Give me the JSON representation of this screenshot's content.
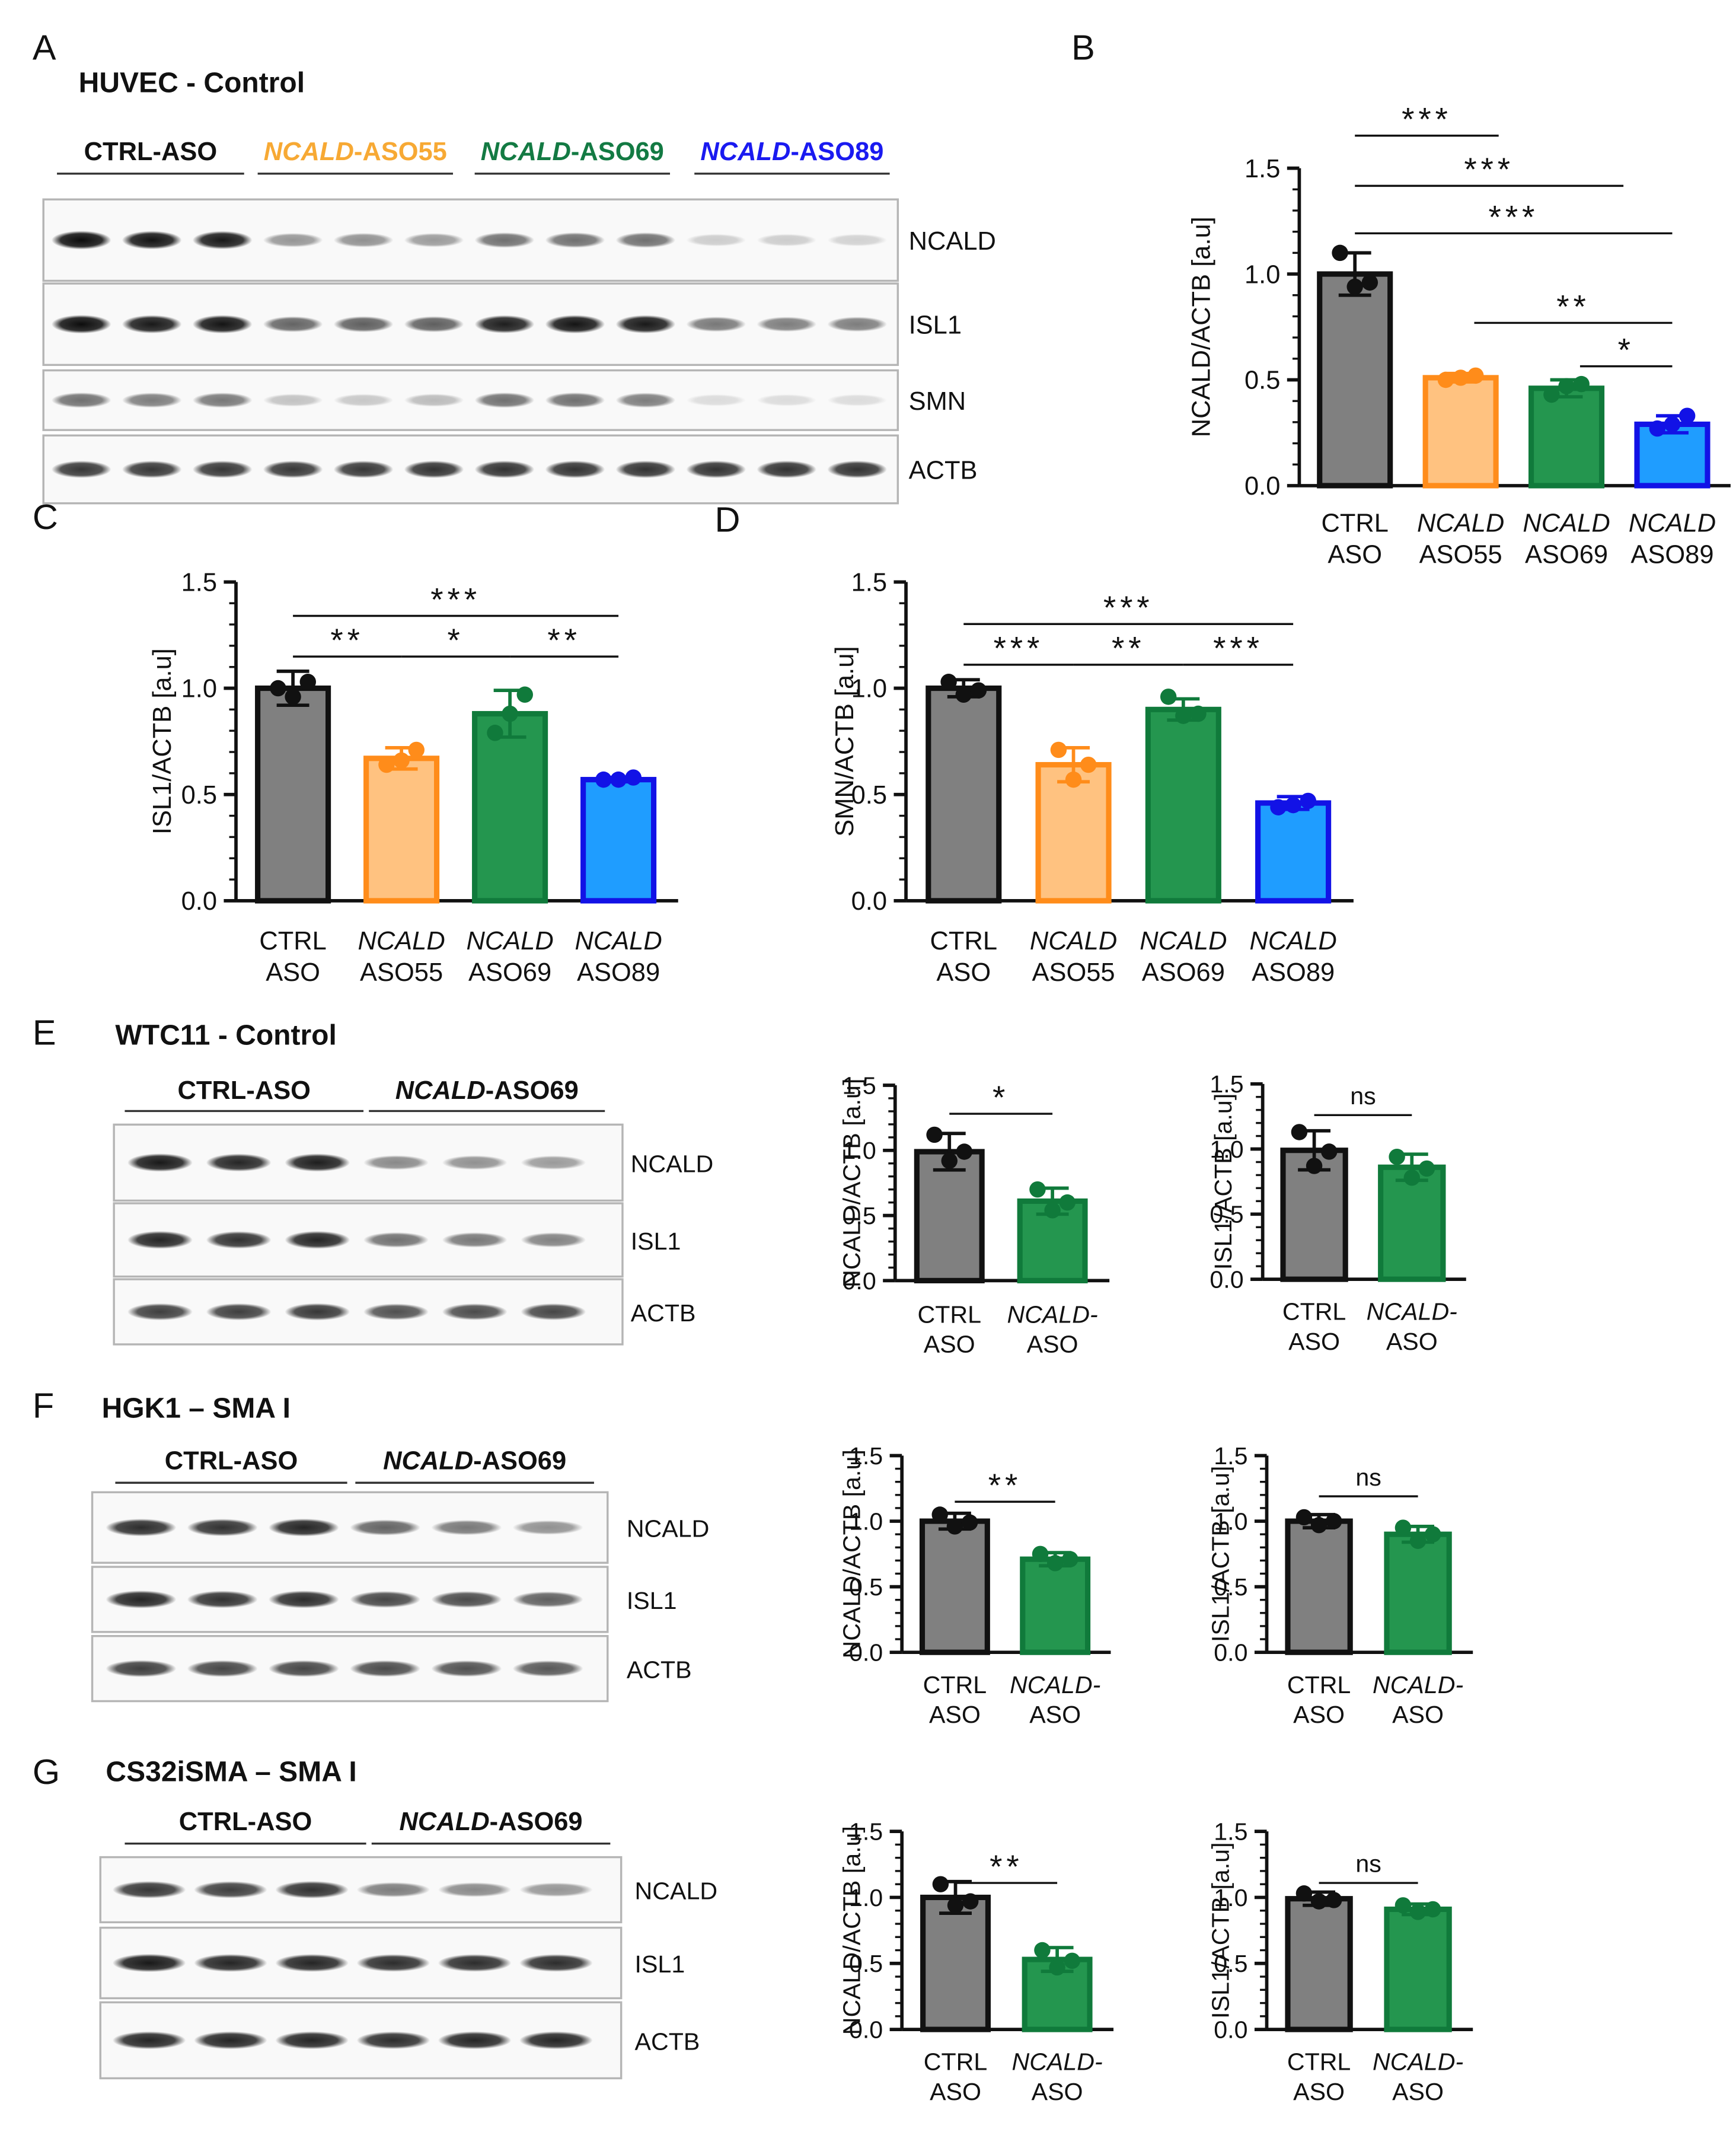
{
  "panels": [
    {
      "letter": "A",
      "blot": {
        "title": "HUVEC - Control",
        "groups": [
          {
            "parts": [
              {
                "text": "CTRL-ASO",
                "italic": false
              }
            ],
            "color": "#111111"
          },
          {
            "parts": [
              {
                "text": "NCALD",
                "italic": true
              },
              {
                "text": "-ASO55",
                "italic": false
              }
            ],
            "color": "#f7a934"
          },
          {
            "parts": [
              {
                "text": "NCALD",
                "italic": true
              },
              {
                "text": "-ASO69",
                "italic": false
              }
            ],
            "color": "#137a43"
          },
          {
            "parts": [
              {
                "text": "NCALD",
                "italic": true
              },
              {
                "text": "-ASO89",
                "italic": false
              }
            ],
            "color": "#1a1af0"
          }
        ],
        "rows": [
          {
            "label": "NCALD",
            "intensity": [
              0.95,
              0.92,
              0.9,
              0.4,
              0.42,
              0.38,
              0.55,
              0.55,
              0.55,
              0.18,
              0.18,
              0.16
            ]
          },
          {
            "label": "ISL1",
            "intensity": [
              0.95,
              0.9,
              0.92,
              0.6,
              0.62,
              0.62,
              0.88,
              0.92,
              0.9,
              0.52,
              0.5,
              0.5
            ]
          },
          {
            "label": "SMN",
            "intensity": [
              0.55,
              0.5,
              0.52,
              0.22,
              0.2,
              0.25,
              0.55,
              0.55,
              0.5,
              0.12,
              0.12,
              0.12
            ]
          },
          {
            "label": "ACTB",
            "intensity": [
              0.78,
              0.78,
              0.78,
              0.78,
              0.78,
              0.8,
              0.8,
              0.8,
              0.8,
              0.8,
              0.8,
              0.8
            ]
          }
        ]
      }
    },
    {
      "letter": "B"
    },
    {
      "letter": "C"
    },
    {
      "letter": "D"
    },
    {
      "letter": "E",
      "blot": {
        "title": "WTC11 - Control",
        "groups": [
          {
            "parts": [
              {
                "text": "CTRL-ASO",
                "italic": false
              }
            ],
            "color": "#111111"
          },
          {
            "parts": [
              {
                "text": "NCALD",
                "italic": true
              },
              {
                "text": "-ASO69",
                "italic": false
              }
            ],
            "color": "#111111"
          }
        ],
        "rows": [
          {
            "label": "NCALD",
            "intensity": [
              0.9,
              0.85,
              0.88,
              0.45,
              0.42,
              0.38
            ]
          },
          {
            "label": "ISL1",
            "intensity": [
              0.85,
              0.8,
              0.85,
              0.55,
              0.52,
              0.48
            ]
          },
          {
            "label": "ACTB",
            "intensity": [
              0.75,
              0.75,
              0.78,
              0.68,
              0.7,
              0.72
            ]
          }
        ]
      }
    },
    {
      "letter": "F",
      "blot": {
        "title": "HGK1 – SMA I",
        "groups": [
          {
            "parts": [
              {
                "text": "CTRL-ASO",
                "italic": false
              }
            ],
            "color": "#111111"
          },
          {
            "parts": [
              {
                "text": "NCALD",
                "italic": true
              },
              {
                "text": "-ASO69",
                "italic": false
              }
            ],
            "color": "#111111"
          }
        ],
        "rows": [
          {
            "label": "NCALD",
            "intensity": [
              0.82,
              0.8,
              0.85,
              0.6,
              0.52,
              0.42
            ]
          },
          {
            "label": "ISL1",
            "intensity": [
              0.85,
              0.8,
              0.82,
              0.72,
              0.7,
              0.62
            ]
          },
          {
            "label": "ACTB",
            "intensity": [
              0.75,
              0.72,
              0.72,
              0.7,
              0.68,
              0.65
            ]
          }
        ]
      }
    },
    {
      "letter": "G",
      "blot": {
        "title": "CS32iSMA – SMA I",
        "groups": [
          {
            "parts": [
              {
                "text": "CTRL-ASO",
                "italic": false
              }
            ],
            "color": "#111111"
          },
          {
            "parts": [
              {
                "text": "NCALD",
                "italic": true
              },
              {
                "text": "-ASO69",
                "italic": false
              }
            ],
            "color": "#111111"
          }
        ],
        "rows": [
          {
            "label": "NCALD",
            "intensity": [
              0.78,
              0.75,
              0.8,
              0.5,
              0.45,
              0.4
            ]
          },
          {
            "label": "ISL1",
            "intensity": [
              0.9,
              0.85,
              0.85,
              0.82,
              0.82,
              0.82
            ]
          },
          {
            "label": "ACTB",
            "intensity": [
              0.85,
              0.85,
              0.85,
              0.82,
              0.85,
              0.85
            ]
          }
        ]
      }
    }
  ],
  "chart_data": [
    {
      "id": "B",
      "type": "bar",
      "ylabel": "NCALD/ACTB [a.u]",
      "ylim": [
        0,
        1.5
      ],
      "yticks": [
        "0.0",
        "0.5",
        "1.0",
        "1.5"
      ],
      "categories": [
        {
          "line1": "CTRL",
          "line1_italic": false,
          "line2": "ASO"
        },
        {
          "line1": "NCALD",
          "line1_italic": true,
          "line2": "ASO55"
        },
        {
          "line1": "NCALD",
          "line1_italic": true,
          "line2": "ASO69"
        },
        {
          "line1": "NCALD",
          "line1_italic": true,
          "line2": "ASO89"
        }
      ],
      "bar_colors": [
        "#808080",
        "#ffc280",
        "#24964f",
        "#1f9dff"
      ],
      "edge_colors": [
        "#111111",
        "#ff8c1a",
        "#107a3b",
        "#1212e6"
      ],
      "values": [
        1.0,
        0.51,
        0.46,
        0.29
      ],
      "errors": [
        0.1,
        0.02,
        0.04,
        0.04
      ],
      "points": [
        [
          1.1,
          0.94,
          0.96
        ],
        [
          0.5,
          0.51,
          0.52
        ],
        [
          0.43,
          0.47,
          0.48
        ],
        [
          0.27,
          0.29,
          0.33
        ]
      ],
      "significance": [
        {
          "from": 0,
          "to": 1,
          "label": "***"
        },
        {
          "from": 0,
          "to": 2,
          "label": "***"
        },
        {
          "from": 0,
          "to": 3,
          "label": "***"
        },
        {
          "from": 1,
          "to": 3,
          "label": "**"
        },
        {
          "from": 2,
          "to": 3,
          "label": "*"
        }
      ]
    },
    {
      "id": "C",
      "type": "bar",
      "ylabel": "ISL1/ACTB [a.u]",
      "ylim": [
        0,
        1.5
      ],
      "yticks": [
        "0.0",
        "0.5",
        "1.0",
        "1.5"
      ],
      "categories": [
        {
          "line1": "CTRL",
          "line1_italic": false,
          "line2": "ASO"
        },
        {
          "line1": "NCALD",
          "line1_italic": true,
          "line2": "ASO55"
        },
        {
          "line1": "NCALD",
          "line1_italic": true,
          "line2": "ASO69"
        },
        {
          "line1": "NCALD",
          "line1_italic": true,
          "line2": "ASO89"
        }
      ],
      "bar_colors": [
        "#808080",
        "#ffc280",
        "#24964f",
        "#1f9dff"
      ],
      "edge_colors": [
        "#111111",
        "#ff8c1a",
        "#107a3b",
        "#1212e6"
      ],
      "values": [
        1.0,
        0.67,
        0.88,
        0.57
      ],
      "errors": [
        0.08,
        0.05,
        0.11,
        0.01
      ],
      "points": [
        [
          1.0,
          0.96,
          1.03
        ],
        [
          0.64,
          0.66,
          0.71
        ],
        [
          0.79,
          0.88,
          0.97
        ],
        [
          0.57,
          0.57,
          0.58
        ]
      ],
      "significance": [
        {
          "from": 0,
          "to": 3,
          "label": "***"
        },
        {
          "from": 0,
          "to": 1,
          "label": "**"
        },
        {
          "from": 1,
          "to": 2,
          "label": "*"
        },
        {
          "from": 2,
          "to": 3,
          "label": "**"
        }
      ]
    },
    {
      "id": "D",
      "type": "bar",
      "ylabel": "SMN/ACTB [a.u]",
      "ylim": [
        0,
        1.5
      ],
      "yticks": [
        "0.0",
        "0.5",
        "1.0",
        "1.5"
      ],
      "categories": [
        {
          "line1": "CTRL",
          "line1_italic": false,
          "line2": "ASO"
        },
        {
          "line1": "NCALD",
          "line1_italic": true,
          "line2": "ASO55"
        },
        {
          "line1": "NCALD",
          "line1_italic": true,
          "line2": "ASO69"
        },
        {
          "line1": "NCALD",
          "line1_italic": true,
          "line2": "ASO89"
        }
      ],
      "bar_colors": [
        "#808080",
        "#ffc280",
        "#24964f",
        "#1f9dff"
      ],
      "edge_colors": [
        "#111111",
        "#ff8c1a",
        "#107a3b",
        "#1212e6"
      ],
      "values": [
        1.0,
        0.64,
        0.9,
        0.46
      ],
      "errors": [
        0.04,
        0.08,
        0.05,
        0.03
      ],
      "points": [
        [
          1.03,
          0.97,
          0.99
        ],
        [
          0.71,
          0.57,
          0.64
        ],
        [
          0.96,
          0.87,
          0.88
        ],
        [
          0.44,
          0.45,
          0.47
        ]
      ],
      "significance": [
        {
          "from": 0,
          "to": 3,
          "label": "***"
        },
        {
          "from": 0,
          "to": 1,
          "label": "***"
        },
        {
          "from": 1,
          "to": 2,
          "label": "**"
        },
        {
          "from": 2,
          "to": 3,
          "label": "***"
        }
      ]
    },
    {
      "id": "E1",
      "type": "bar",
      "ylabel": "NCALD/ACTB [a.u]",
      "ylim": [
        0,
        1.5
      ],
      "yticks": [
        "0.0",
        "0.5",
        "1.0",
        "1.5"
      ],
      "categories": [
        {
          "line1": "CTRL",
          "line1_italic": false,
          "line2": "ASO"
        },
        {
          "line1": "NCALD-",
          "line1_italic": true,
          "line2": "ASO"
        }
      ],
      "bar_colors": [
        "#808080",
        "#24964f"
      ],
      "edge_colors": [
        "#111111",
        "#107a3b"
      ],
      "values": [
        0.99,
        0.61
      ],
      "errors": [
        0.14,
        0.1
      ],
      "points": [
        [
          1.12,
          0.92,
          0.99
        ],
        [
          0.7,
          0.54,
          0.6
        ]
      ],
      "significance": [
        {
          "from": 0,
          "to": 1,
          "label": "*"
        }
      ]
    },
    {
      "id": "E2",
      "type": "bar",
      "ylabel": "ISL1/ACTB [a.u]",
      "ylim": [
        0,
        1.5
      ],
      "yticks": [
        "0.0",
        "0.5",
        "1.0",
        "1.5"
      ],
      "categories": [
        {
          "line1": "CTRL",
          "line1_italic": false,
          "line2": "ASO"
        },
        {
          "line1": "NCALD-",
          "line1_italic": true,
          "line2": "ASO"
        }
      ],
      "bar_colors": [
        "#808080",
        "#24964f"
      ],
      "edge_colors": [
        "#111111",
        "#107a3b"
      ],
      "values": [
        0.99,
        0.86
      ],
      "errors": [
        0.15,
        0.1
      ],
      "points": [
        [
          1.13,
          0.87,
          0.98
        ],
        [
          0.94,
          0.78,
          0.85
        ]
      ],
      "significance": [
        {
          "from": 0,
          "to": 1,
          "label": "ns"
        }
      ]
    },
    {
      "id": "F1",
      "type": "bar",
      "ylabel": "NCALD/ACTB [a.u]",
      "ylim": [
        0,
        1.5
      ],
      "yticks": [
        "0.0",
        "0.5",
        "1.0",
        "1.5"
      ],
      "categories": [
        {
          "line1": "CTRL",
          "line1_italic": false,
          "line2": "ASO"
        },
        {
          "line1": "NCALD-",
          "line1_italic": true,
          "line2": "ASO"
        }
      ],
      "bar_colors": [
        "#808080",
        "#24964f"
      ],
      "edge_colors": [
        "#111111",
        "#107a3b"
      ],
      "values": [
        1.0,
        0.71
      ],
      "errors": [
        0.06,
        0.05
      ],
      "points": [
        [
          1.05,
          0.96,
          0.99
        ],
        [
          0.75,
          0.68,
          0.71
        ]
      ],
      "significance": [
        {
          "from": 0,
          "to": 1,
          "label": "**"
        }
      ]
    },
    {
      "id": "F2",
      "type": "bar",
      "ylabel": "ISL1/ACTB [a.u]",
      "ylim": [
        0,
        1.5
      ],
      "yticks": [
        "0.0",
        "0.5",
        "1.0",
        "1.5"
      ],
      "categories": [
        {
          "line1": "CTRL",
          "line1_italic": false,
          "line2": "ASO"
        },
        {
          "line1": "NCALD-",
          "line1_italic": true,
          "line2": "ASO"
        }
      ],
      "bar_colors": [
        "#808080",
        "#24964f"
      ],
      "edge_colors": [
        "#111111",
        "#107a3b"
      ],
      "values": [
        1.0,
        0.9
      ],
      "errors": [
        0.05,
        0.06
      ],
      "points": [
        [
          1.03,
          0.97,
          1.0
        ],
        [
          0.95,
          0.85,
          0.9
        ]
      ],
      "significance": [
        {
          "from": 0,
          "to": 1,
          "label": "ns"
        }
      ]
    },
    {
      "id": "G1",
      "type": "bar",
      "ylabel": "NCALD/ACTB [a.u]",
      "ylim": [
        0,
        1.5
      ],
      "yticks": [
        "0.0",
        "0.5",
        "1.0",
        "1.5"
      ],
      "categories": [
        {
          "line1": "CTRL",
          "line1_italic": false,
          "line2": "ASO"
        },
        {
          "line1": "NCALD-",
          "line1_italic": true,
          "line2": "ASO"
        }
      ],
      "bar_colors": [
        "#808080",
        "#24964f"
      ],
      "edge_colors": [
        "#111111",
        "#107a3b"
      ],
      "values": [
        1.0,
        0.53
      ],
      "errors": [
        0.12,
        0.09
      ],
      "points": [
        [
          1.1,
          0.94,
          0.97
        ],
        [
          0.6,
          0.47,
          0.52
        ]
      ],
      "significance": [
        {
          "from": 0,
          "to": 1,
          "label": "**"
        }
      ]
    },
    {
      "id": "G2",
      "type": "bar",
      "ylabel": "ISL1/ACTB [a.u]",
      "ylim": [
        0,
        1.5
      ],
      "yticks": [
        "0.0",
        "0.5",
        "1.0",
        "1.5"
      ],
      "categories": [
        {
          "line1": "CTRL",
          "line1_italic": false,
          "line2": "ASO"
        },
        {
          "line1": "NCALD-",
          "line1_italic": true,
          "line2": "ASO"
        }
      ],
      "bar_colors": [
        "#808080",
        "#24964f"
      ],
      "edge_colors": [
        "#111111",
        "#107a3b"
      ],
      "values": [
        0.99,
        0.91
      ],
      "errors": [
        0.05,
        0.04
      ],
      "points": [
        [
          1.03,
          0.97,
          0.98
        ],
        [
          0.94,
          0.89,
          0.91
        ]
      ],
      "significance": [
        {
          "from": 0,
          "to": 1,
          "label": "ns"
        }
      ]
    }
  ]
}
